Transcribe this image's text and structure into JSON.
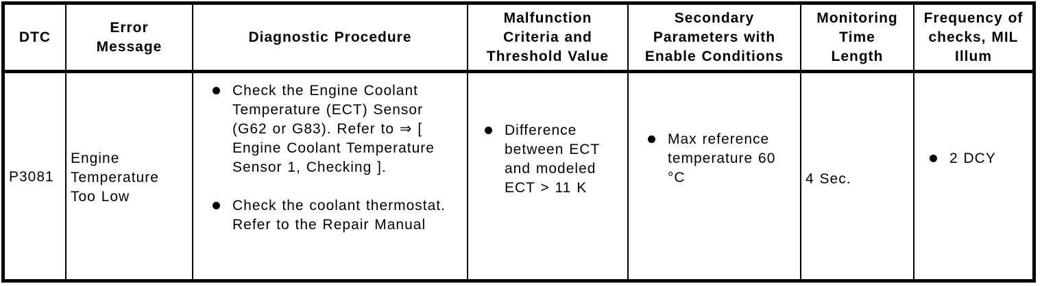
{
  "colors": {
    "background": "#ffffff",
    "border": "#000000",
    "text": "#000000"
  },
  "icons": {
    "bullet": "filled-circle"
  },
  "table": {
    "headers": [
      "DTC",
      "Error\nMessage",
      "Diagnostic Procedure",
      "Malfunction\nCriteria and\nThreshold Value",
      "Secondary\nParameters with\nEnable Conditions",
      "Monitoring\nTime\nLength",
      "Frequency of\nchecks, MIL\nIllum"
    ],
    "row": {
      "dtc": "P3081",
      "error_message": "Engine\nTemperature\nToo Low",
      "diagnostic_procedure_items": [
        "Check the Engine Coolant\nTemperature (ECT) Sensor\n(G62 or G83). Refer to ⇒ [\nEngine Coolant Temperature\nSensor 1, Checking ].",
        "Check the coolant thermostat.\nRefer to the Repair Manual"
      ],
      "malfunction_criteria_items": [
        "Difference\nbetween ECT\nand modeled\nECT > 11 K"
      ],
      "secondary_parameters_items": [
        "Max reference\ntemperature 60\n°C"
      ],
      "monitoring_time_length": "4 Sec.",
      "frequency_of_checks_items": [
        "2 DCY"
      ]
    }
  }
}
